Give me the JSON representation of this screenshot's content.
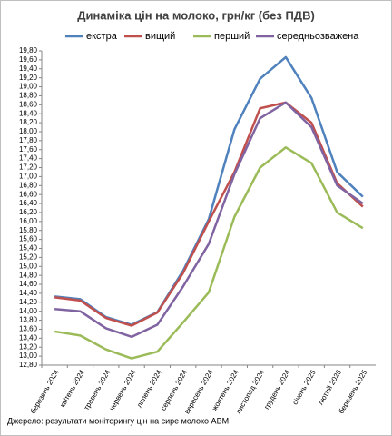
{
  "chart_data": {
    "type": "line",
    "title": "Динаміка цін на молоко, грн/кг (без ПДВ)",
    "source": "Джерело: результати моніторингу цін на сире молоко АВМ",
    "categories": [
      "березень 2024",
      "квітень 2024",
      "травень 2024",
      "червень 2024",
      "липень 2024",
      "серпень 2024",
      "вересень 2024",
      "жовтень 2024",
      "листопад 2024",
      "грудень 2024",
      "січень 2025",
      "лютий 2025",
      "березень 2025"
    ],
    "series": [
      {
        "name": "екстра",
        "color": "#4f81bd",
        "values": [
          14.33,
          14.27,
          13.87,
          13.7,
          13.98,
          14.9,
          16.05,
          18.05,
          19.18,
          19.66,
          18.75,
          17.1,
          16.55
        ]
      },
      {
        "name": "вищий",
        "color": "#c0504d",
        "values": [
          14.31,
          14.24,
          13.85,
          13.68,
          13.97,
          14.85,
          16.0,
          17.1,
          18.52,
          18.65,
          18.2,
          16.85,
          16.33
        ]
      },
      {
        "name": "перший",
        "color": "#9bbb59",
        "values": [
          13.55,
          13.46,
          13.15,
          12.95,
          13.1,
          13.75,
          14.42,
          16.1,
          17.2,
          17.65,
          17.3,
          16.2,
          15.85
        ]
      },
      {
        "name": "середньозважена",
        "color": "#8064a2",
        "values": [
          14.05,
          14.0,
          13.62,
          13.43,
          13.7,
          14.55,
          15.5,
          17.05,
          18.3,
          18.65,
          18.1,
          16.8,
          16.4
        ]
      }
    ],
    "ylim": [
      12.8,
      19.8
    ],
    "yticks": [
      {
        "value": 12.8,
        "label": "12,80"
      },
      {
        "value": 13.0,
        "label": "13,00"
      },
      {
        "value": 13.2,
        "label": "13,20"
      },
      {
        "value": 13.4,
        "label": "13,40"
      },
      {
        "value": 13.6,
        "label": "13,60"
      },
      {
        "value": 13.8,
        "label": "13,80"
      },
      {
        "value": 14.0,
        "label": "14,00"
      },
      {
        "value": 14.2,
        "label": "14,20"
      },
      {
        "value": 14.4,
        "label": "14,40"
      },
      {
        "value": 14.6,
        "label": "14,60"
      },
      {
        "value": 14.8,
        "label": "14,80"
      },
      {
        "value": 15.0,
        "label": "15,00"
      },
      {
        "value": 15.2,
        "label": "15,20"
      },
      {
        "value": 15.4,
        "label": "15,40"
      },
      {
        "value": 15.6,
        "label": "15,60"
      },
      {
        "value": 15.8,
        "label": "15,80"
      },
      {
        "value": 16.0,
        "label": "16,00"
      },
      {
        "value": 16.2,
        "label": "16,20"
      },
      {
        "value": 16.4,
        "label": "16,40"
      },
      {
        "value": 16.6,
        "label": "16,60"
      },
      {
        "value": 16.8,
        "label": "16,80"
      },
      {
        "value": 17.0,
        "label": "17,00"
      },
      {
        "value": 17.2,
        "label": "17,20"
      },
      {
        "value": 17.4,
        "label": "17,40"
      },
      {
        "value": 17.6,
        "label": "17,60"
      },
      {
        "value": 17.8,
        "label": "17,80"
      },
      {
        "value": 18.0,
        "label": "18,00"
      },
      {
        "value": 18.2,
        "label": "18,20"
      },
      {
        "value": 18.4,
        "label": "18,40"
      },
      {
        "value": 18.6,
        "label": "18,60"
      },
      {
        "value": 18.8,
        "label": "18,80"
      },
      {
        "value": 19.0,
        "label": "19,00"
      },
      {
        "value": 19.2,
        "label": "19,20"
      },
      {
        "value": 19.4,
        "label": "19,40"
      },
      {
        "value": 19.6,
        "label": "19,60"
      },
      {
        "value": 19.8,
        "label": "19,80"
      }
    ],
    "grid": false
  }
}
